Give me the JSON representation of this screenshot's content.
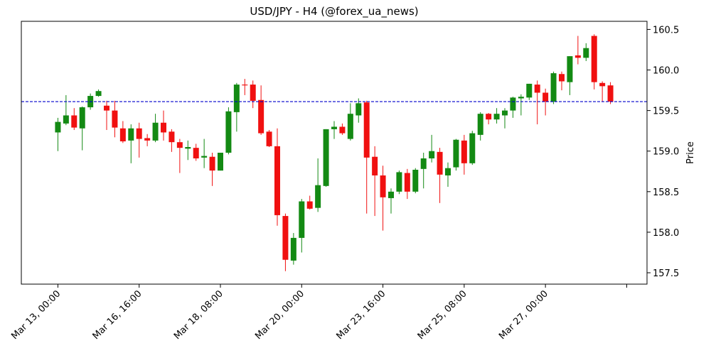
{
  "chart_data": {
    "type": "candlestick",
    "title": "USD/JPY - H4 (@forex_ua_news)",
    "y_label": "Price",
    "y_axis_side": "right",
    "up_color": "#138a13",
    "down_color": "#f01010",
    "x": [
      0,
      1,
      2,
      3,
      4,
      5,
      6,
      7,
      8,
      9,
      10,
      11,
      12,
      13,
      14,
      15,
      16,
      17,
      18,
      19,
      20,
      21,
      22,
      23,
      24,
      25,
      26,
      27,
      28,
      29,
      30,
      31,
      32,
      33,
      34,
      35,
      36,
      37,
      38,
      39,
      40,
      41,
      42,
      43,
      44,
      45,
      46,
      47,
      48,
      49,
      50,
      51,
      52,
      53,
      54,
      55,
      56,
      57,
      58,
      59,
      60,
      61,
      62,
      63,
      64,
      65,
      66,
      67,
      68
    ],
    "open": [
      159.23,
      159.34,
      159.44,
      159.28,
      159.54,
      159.68,
      159.56,
      159.5,
      159.28,
      159.13,
      159.28,
      159.16,
      159.13,
      159.35,
      159.24,
      159.11,
      159.03,
      159.04,
      158.92,
      158.93,
      158.76,
      158.98,
      159.48,
      159.82,
      159.82,
      159.63,
      159.24,
      159.06,
      158.2,
      157.65,
      157.93,
      158.38,
      158.3,
      158.57,
      159.27,
      159.3,
      159.15,
      159.44,
      159.6,
      158.93,
      158.7,
      158.42,
      158.5,
      158.73,
      158.5,
      158.78,
      158.91,
      158.99,
      158.7,
      158.8,
      159.13,
      158.85,
      159.2,
      159.46,
      159.39,
      159.44,
      159.5,
      159.65,
      159.66,
      159.82,
      159.72,
      159.61,
      159.95,
      159.85,
      160.18,
      160.15,
      160.42,
      159.84,
      159.81
    ],
    "high": [
      159.41,
      159.69,
      159.53,
      159.55,
      159.71,
      159.76,
      159.62,
      159.62,
      159.37,
      159.33,
      159.35,
      159.21,
      159.46,
      159.5,
      159.27,
      159.15,
      159.13,
      159.09,
      159.15,
      158.98,
      158.98,
      159.54,
      159.84,
      159.89,
      159.87,
      159.81,
      159.26,
      159.28,
      158.23,
      157.99,
      158.41,
      158.45,
      158.91,
      159.27,
      159.37,
      159.34,
      159.59,
      159.65,
      159.62,
      159.06,
      158.82,
      158.54,
      158.76,
      158.78,
      158.79,
      158.98,
      159.2,
      159.04,
      158.86,
      159.15,
      159.2,
      159.25,
      159.48,
      159.47,
      159.53,
      159.53,
      159.67,
      159.7,
      159.83,
      159.87,
      159.77,
      159.98,
      159.98,
      160.17,
      160.42,
      160.33,
      160.44,
      159.86,
      159.85
    ],
    "low": [
      159.0,
      159.32,
      159.26,
      159.01,
      159.51,
      159.67,
      159.26,
      159.17,
      159.1,
      158.85,
      158.92,
      159.06,
      159.11,
      159.13,
      158.99,
      158.73,
      158.89,
      158.88,
      158.79,
      158.57,
      158.76,
      158.96,
      159.24,
      159.69,
      159.53,
      159.2,
      159.05,
      158.08,
      157.52,
      157.6,
      157.75,
      158.28,
      158.25,
      158.56,
      159.15,
      159.2,
      159.13,
      159.35,
      158.23,
      158.2,
      158.02,
      158.23,
      158.47,
      158.41,
      158.48,
      158.54,
      158.86,
      158.36,
      158.56,
      158.76,
      158.71,
      158.83,
      159.13,
      159.33,
      159.34,
      159.28,
      159.41,
      159.44,
      159.63,
      159.33,
      159.44,
      159.58,
      159.75,
      159.69,
      160.07,
      160.11,
      159.76,
      159.61,
      159.58
    ],
    "close": [
      159.36,
      159.44,
      159.29,
      159.54,
      159.68,
      159.74,
      159.5,
      159.29,
      159.12,
      159.28,
      159.15,
      159.13,
      159.35,
      159.23,
      159.11,
      159.04,
      159.05,
      158.91,
      158.94,
      158.76,
      158.98,
      159.49,
      159.82,
      159.81,
      159.62,
      159.22,
      159.06,
      158.21,
      157.66,
      157.93,
      158.38,
      158.29,
      158.58,
      159.27,
      159.3,
      159.22,
      159.46,
      159.59,
      158.92,
      158.7,
      158.43,
      158.5,
      158.74,
      158.5,
      158.77,
      158.91,
      159.0,
      158.71,
      158.79,
      159.14,
      158.85,
      159.22,
      159.46,
      159.39,
      159.46,
      159.5,
      159.66,
      159.67,
      159.83,
      159.72,
      159.61,
      159.96,
      159.86,
      160.17,
      160.15,
      160.27,
      159.85,
      159.8,
      159.61
    ],
    "xlim": [
      -4.5,
      72.5
    ],
    "xticks": [
      {
        "value": 0,
        "label": "Mar 13, 00:00"
      },
      {
        "value": 10,
        "label": "Mar 16, 16:00"
      },
      {
        "value": 20,
        "label": "Mar 18, 08:00"
      },
      {
        "value": 30,
        "label": "Mar 20, 00:00"
      },
      {
        "value": 40,
        "label": "Mar 23, 16:00"
      },
      {
        "value": 50,
        "label": "Mar 25, 08:00"
      },
      {
        "value": 60,
        "label": "Mar 27, 00:00"
      },
      {
        "value": 70,
        "label": null
      }
    ],
    "ylim": [
      157.36,
      160.6
    ],
    "yticks": [
      157.5,
      {
        "value": 158,
        "label": "158.0"
      },
      158.5,
      {
        "value": 159,
        "label": "159.0"
      },
      159.5,
      {
        "value": 160,
        "label": "160.0"
      },
      160.5
    ],
    "hline": {
      "value": 159.61,
      "color": "#0000cc"
    }
  }
}
